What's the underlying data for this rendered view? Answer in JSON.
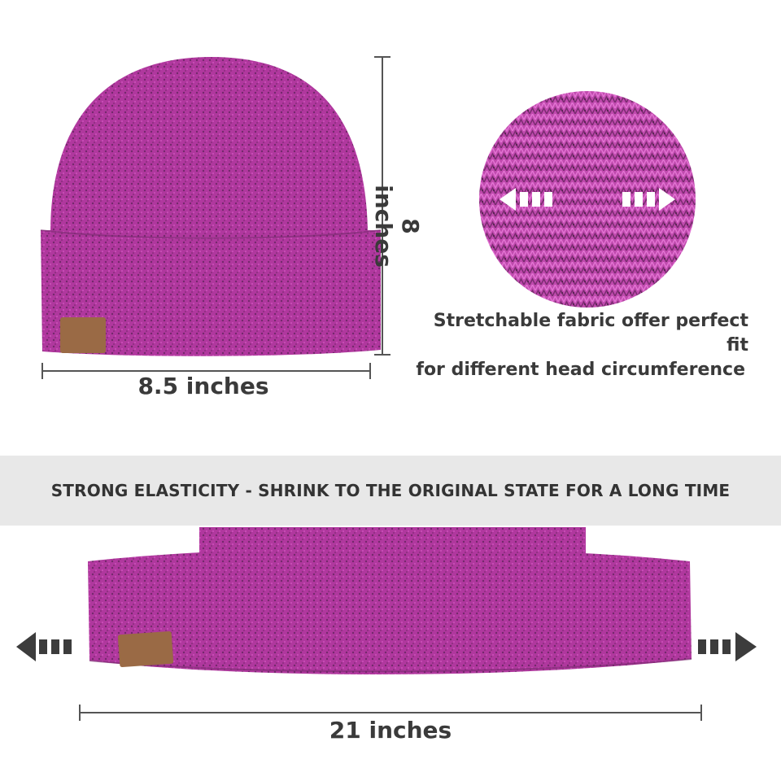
{
  "measurements": {
    "height": "8 inches",
    "width": "8.5 inches",
    "stretched_width": "21 inches"
  },
  "fabric_note": {
    "line1": "Stretchable fabric offer perfect fit",
    "line2": "for different head circumference"
  },
  "banner": {
    "text": "STRONG ELASTICITY - SHRINK TO THE ORIGINAL STATE FOR A LONG TIME"
  },
  "colors": {
    "knit_base": "#b0389e",
    "knit_light": "#d457c2",
    "knit_dark": "#5a2255",
    "patch": "#9a6a45",
    "arrow_dark": "#3c3c3c"
  }
}
